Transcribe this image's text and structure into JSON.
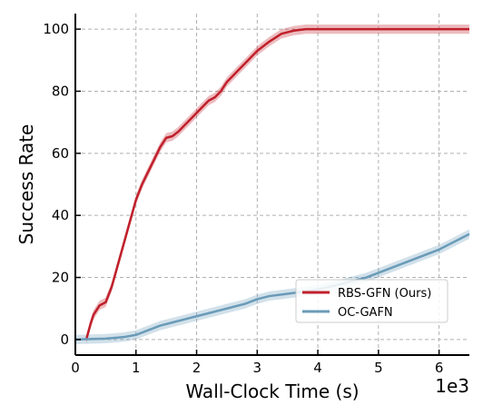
{
  "chart_data": {
    "type": "line",
    "xlabel": "Wall-Clock Time (s)",
    "ylabel": "Success Rate",
    "x_scale_label": "1e3",
    "xlim": [
      0,
      6.5
    ],
    "ylim": [
      -5,
      105
    ],
    "x_ticks": [
      0,
      1,
      2,
      3,
      4,
      5,
      6
    ],
    "y_ticks": [
      0,
      20,
      40,
      60,
      80,
      100
    ],
    "x_tick_labels": [
      "0",
      "1",
      "2",
      "3",
      "4",
      "5",
      "6"
    ],
    "y_tick_labels": [
      "0",
      "20",
      "40",
      "60",
      "80",
      "100"
    ],
    "grid": true,
    "legend_position": "lower-right",
    "series": [
      {
        "name": "RBS-GFN (Ours)",
        "color": "#c0202b",
        "x": [
          0.18,
          0.25,
          0.3,
          0.4,
          0.5,
          0.6,
          0.7,
          0.8,
          0.9,
          1.0,
          1.1,
          1.2,
          1.3,
          1.4,
          1.5,
          1.6,
          1.7,
          1.8,
          1.9,
          2.0,
          2.1,
          2.2,
          2.3,
          2.4,
          2.5,
          2.6,
          2.7,
          2.8,
          2.9,
          3.0,
          3.2,
          3.4,
          3.6,
          3.8,
          4.0,
          4.5,
          5.0,
          5.5,
          6.0,
          6.5
        ],
        "y": [
          0,
          5,
          8,
          11,
          12,
          17,
          24,
          31,
          38,
          45,
          50,
          54,
          58,
          62,
          65,
          65.5,
          67,
          69,
          71,
          73,
          75,
          77,
          78,
          80,
          83,
          85,
          87,
          89,
          91,
          93,
          96,
          98.5,
          99.5,
          100,
          100,
          100,
          100,
          100,
          100,
          100
        ],
        "band": 1.5
      },
      {
        "name": "OC-GAFN",
        "color": "#6a9bb8",
        "x": [
          0.0,
          0.5,
          0.8,
          1.0,
          1.2,
          1.4,
          1.6,
          1.8,
          2.0,
          2.2,
          2.4,
          2.6,
          2.8,
          3.0,
          3.2,
          3.4,
          3.6,
          3.8,
          4.0,
          4.2,
          4.4,
          4.6,
          4.8,
          5.0,
          5.2,
          5.4,
          5.6,
          5.8,
          6.0,
          6.2,
          6.4,
          6.5
        ],
        "y": [
          0,
          0.3,
          0.8,
          1.5,
          3,
          4.5,
          5.5,
          6.5,
          7.5,
          8.5,
          9.5,
          10.5,
          11.5,
          13,
          14,
          14.5,
          15,
          15.5,
          16.2,
          17,
          18,
          19,
          20,
          21.5,
          23,
          24.5,
          26,
          27.5,
          29,
          31,
          33,
          34
        ],
        "band": 1.5
      }
    ]
  }
}
